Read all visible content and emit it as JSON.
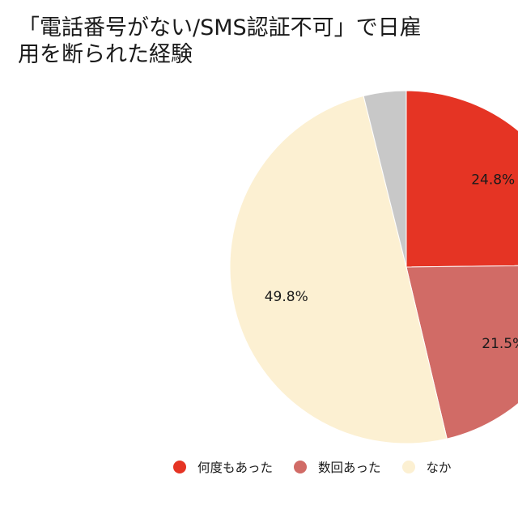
{
  "chart_data": {
    "type": "pie",
    "title_lines": [
      "「電話番号がない/SMS認証不可」で日雇",
      "用を断られた経験"
    ],
    "slices": [
      {
        "label": "何度もあった",
        "value": 24.8,
        "value_label": "24.8%",
        "color": "#e53424"
      },
      {
        "label": "数回あった",
        "value": 21.5,
        "value_label": "21.5%",
        "color": "#d16b66"
      },
      {
        "label": "なか",
        "value": 49.8,
        "value_label": "49.8%",
        "color": "#fcf0d2"
      },
      {
        "label": "",
        "value": 3.9,
        "value_label": "",
        "color": "#c8c8c8"
      }
    ],
    "legend": [
      {
        "label": "何度もあった",
        "color": "#e53424"
      },
      {
        "label": "数回あった",
        "color": "#d16b66"
      },
      {
        "label": "なか",
        "color": "#fcf0d2"
      }
    ],
    "legend_position": "bottom"
  }
}
